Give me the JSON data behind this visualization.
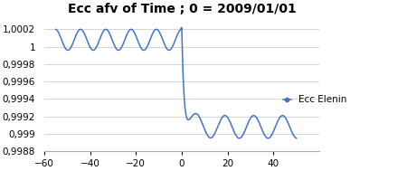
{
  "title": "Ecc afv of Time ; 0 = 2009/01/01",
  "legend_label": "Ecc Elenin",
  "legend_color": "#4472c4",
  "xlim": [
    -60,
    60
  ],
  "ylim": [
    0.9988,
    1.00035
  ],
  "xticks": [
    -60,
    -40,
    -20,
    0,
    20,
    40
  ],
  "yticks": [
    0.9988,
    0.999,
    0.9992,
    0.9994,
    0.9996,
    0.9998,
    1.0,
    1.0002
  ],
  "ytick_labels": [
    "0,9988",
    "0,999",
    "0,9992",
    "0,9994",
    "0,9996",
    "0,9998",
    "1",
    "1,0002"
  ],
  "line_color": "#4472c4",
  "background_color": "#ffffff",
  "grid_color": "#cccccc",
  "title_fontsize": 10,
  "tick_fontsize": 7.5
}
